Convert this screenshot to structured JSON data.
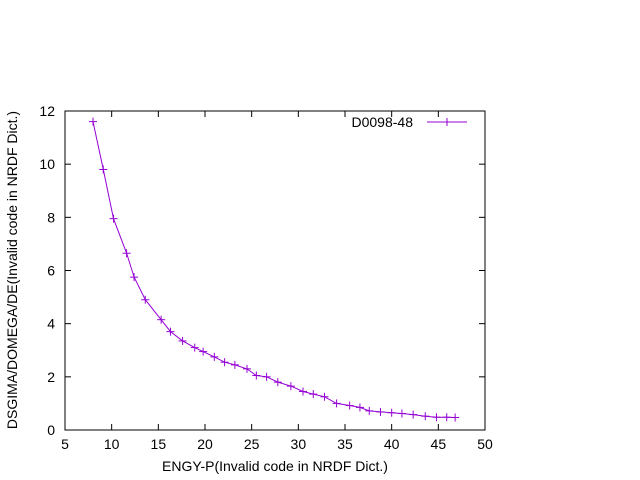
{
  "chart_data": {
    "type": "line",
    "xlabel": "ENGY-P(Invalid code in NRDF Dict.)",
    "ylabel": "DSGIMA/DOMEGA/DE(Invalid code in NRDF Dict.)",
    "xlim": [
      5,
      50
    ],
    "ylim": [
      0,
      12
    ],
    "xticks": [
      5,
      10,
      15,
      20,
      25,
      30,
      35,
      40,
      45,
      50
    ],
    "yticks": [
      0,
      2,
      4,
      6,
      8,
      10,
      12
    ],
    "grid": false,
    "legend_position": "top-right",
    "series": [
      {
        "name": "D0098-48",
        "color": "#9400d3",
        "marker": "plus",
        "x": [
          8.0,
          9.1,
          10.2,
          11.6,
          12.4,
          13.6,
          15.3,
          16.3,
          17.6,
          18.9,
          19.8,
          21.0,
          22.1,
          23.2,
          24.5,
          25.5,
          26.6,
          27.8,
          29.2,
          30.5,
          31.6,
          32.8,
          34.1,
          35.5,
          36.6,
          37.6,
          38.8,
          40.0,
          41.1,
          42.3,
          43.6,
          44.8,
          45.9,
          46.8
        ],
        "y": [
          11.6,
          9.8,
          7.95,
          6.65,
          5.75,
          4.9,
          4.15,
          3.7,
          3.35,
          3.1,
          2.95,
          2.75,
          2.55,
          2.45,
          2.3,
          2.05,
          2.0,
          1.8,
          1.65,
          1.45,
          1.35,
          1.25,
          1.0,
          0.92,
          0.85,
          0.72,
          0.68,
          0.65,
          0.62,
          0.58,
          0.52,
          0.48,
          0.48,
          0.47
        ]
      }
    ]
  }
}
